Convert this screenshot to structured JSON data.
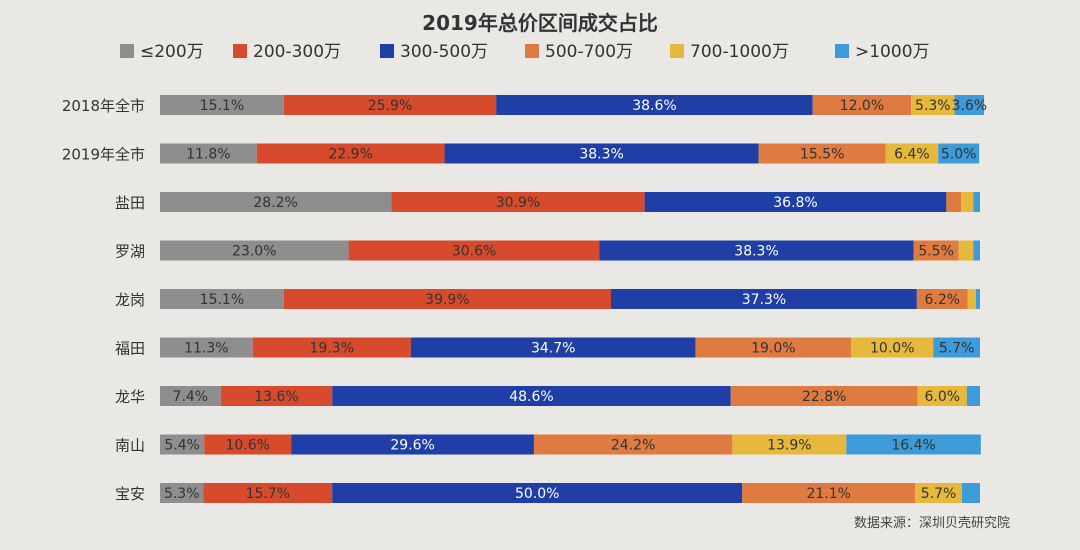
{
  "chart_data": {
    "type": "bar",
    "orientation": "horizontal-stacked",
    "title": "2019年总价区间成交占比",
    "source": "数据来源：深圳贝壳研究院",
    "legend_placement": "top",
    "unit": "%",
    "xlim": [
      0,
      100
    ],
    "categories": [
      "2018年全市",
      "2019年全市",
      "盐田",
      "罗湖",
      "龙岗",
      "福田",
      "龙华",
      "南山",
      "宝安"
    ],
    "series": [
      {
        "name": "≤200万",
        "color": "#8e8e8e",
        "values": [
          15.1,
          11.8,
          28.2,
          23.0,
          15.1,
          11.3,
          7.4,
          5.4,
          5.3
        ],
        "labels": [
          "15.1%",
          "11.8%",
          "28.2%",
          "23.0%",
          "15.1%",
          "11.3%",
          "7.4%",
          "5.4%",
          "5.3%"
        ]
      },
      {
        "name": "200-300万",
        "color": "#d84a2c",
        "values": [
          25.9,
          22.9,
          30.9,
          30.6,
          39.9,
          19.3,
          13.6,
          10.6,
          15.7
        ],
        "labels": [
          "25.9%",
          "22.9%",
          "30.9%",
          "30.6%",
          "39.9%",
          "19.3%",
          "13.6%",
          "10.6%",
          "15.7%"
        ]
      },
      {
        "name": "300-500万",
        "color": "#1f3ea6",
        "values": [
          38.6,
          38.3,
          36.8,
          38.3,
          37.3,
          34.7,
          48.6,
          29.6,
          50.0
        ],
        "labels": [
          "38.6%",
          "38.3%",
          "36.8%",
          "38.3%",
          "37.3%",
          "34.7%",
          "48.6%",
          "29.6%",
          "50.0%"
        ]
      },
      {
        "name": "500-700万",
        "color": "#df7b40",
        "values": [
          12.0,
          15.5,
          1.8,
          5.5,
          6.2,
          19.0,
          22.8,
          24.2,
          21.1
        ],
        "labels": [
          "12.0%",
          "15.5%",
          "",
          "5.5%",
          "6.2%",
          "19.0%",
          "22.8%",
          "24.2%",
          "21.1%"
        ]
      },
      {
        "name": "700-1000万",
        "color": "#e6b93c",
        "values": [
          5.3,
          6.4,
          1.5,
          1.8,
          1.0,
          10.0,
          6.0,
          13.9,
          5.7
        ],
        "labels": [
          "5.3%",
          "6.4%",
          "",
          "",
          "",
          "10.0%",
          "6.0%",
          "13.9%",
          "5.7%"
        ]
      },
      {
        "name": ">1000万",
        "color": "#3d9bd9",
        "values": [
          3.6,
          5.0,
          0.8,
          0.8,
          0.5,
          5.7,
          1.6,
          16.4,
          2.2
        ],
        "labels": [
          "3.6%",
          "5.0%",
          "",
          "",
          "",
          "5.7%",
          "",
          "16.4%",
          ""
        ]
      }
    ]
  }
}
